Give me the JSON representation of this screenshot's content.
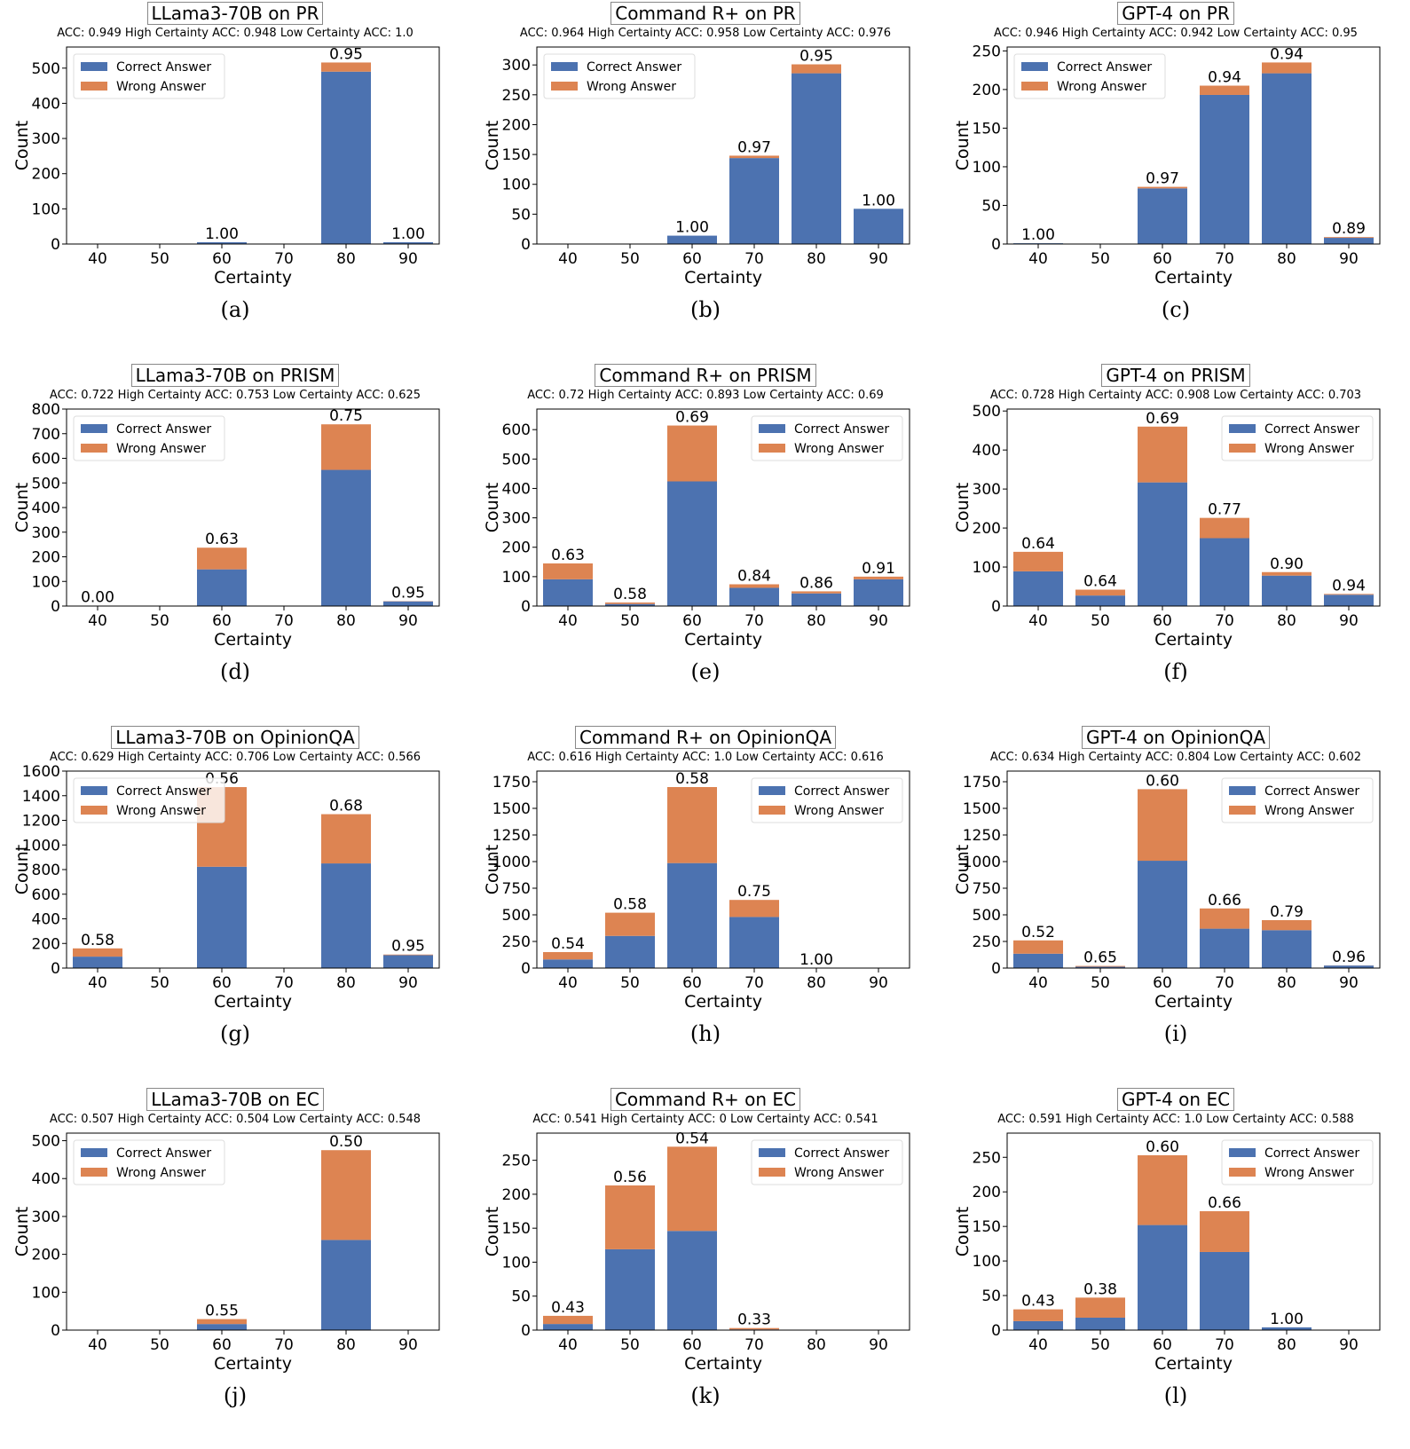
{
  "colors": {
    "correct": "#4c72b0",
    "wrong": "#dd8452"
  },
  "chart_data": [
    {
      "type": "bar",
      "stacked": true,
      "caption": "(a)",
      "title": "LLama3-70B on PR",
      "subtitle": "ACC: 0.949  High Certainty ACC: 0.948  Low Certainty ACC: 1.0",
      "xlabel": "Certainty",
      "ylabel": "Count",
      "categories": [
        "40",
        "50",
        "60",
        "70",
        "80",
        "90"
      ],
      "ylim": [
        0,
        560
      ],
      "yticks": [
        0,
        100,
        200,
        300,
        400,
        500
      ],
      "legend": "top-left",
      "series": [
        {
          "name": "Correct Answer",
          "values": [
            0,
            0,
            5,
            0,
            490,
            5
          ]
        },
        {
          "name": "Wrong Answer",
          "values": [
            0,
            0,
            0,
            0,
            26,
            0
          ]
        }
      ],
      "labels": [
        "",
        "",
        "1.00",
        "",
        "0.95",
        "1.00"
      ]
    },
    {
      "type": "bar",
      "stacked": true,
      "caption": "(b)",
      "title": "Command R+ on PR",
      "subtitle": "ACC: 0.964  High Certainty ACC: 0.958  Low Certainty ACC: 0.976",
      "xlabel": "Certainty",
      "ylabel": "Count",
      "categories": [
        "40",
        "50",
        "60",
        "70",
        "80",
        "90"
      ],
      "ylim": [
        0,
        330
      ],
      "yticks": [
        0,
        50,
        100,
        150,
        200,
        250,
        300
      ],
      "legend": "top-left",
      "series": [
        {
          "name": "Correct Answer",
          "values": [
            0,
            0,
            14,
            144,
            286,
            59
          ]
        },
        {
          "name": "Wrong Answer",
          "values": [
            0,
            0,
            0,
            4,
            15,
            0
          ]
        }
      ],
      "labels": [
        "",
        "",
        "1.00",
        "0.97",
        "0.95",
        "1.00"
      ]
    },
    {
      "type": "bar",
      "stacked": true,
      "caption": "(c)",
      "title": "GPT-4 on PR",
      "subtitle": "ACC: 0.946  High Certainty ACC: 0.942  Low Certainty ACC: 0.95",
      "xlabel": "Certainty",
      "ylabel": "Count",
      "categories": [
        "40",
        "50",
        "60",
        "70",
        "80",
        "90"
      ],
      "ylim": [
        0,
        255
      ],
      "yticks": [
        0,
        50,
        100,
        150,
        200,
        250
      ],
      "legend": "top-left",
      "series": [
        {
          "name": "Correct Answer",
          "values": [
            1,
            0,
            72,
            193,
            221,
            8
          ]
        },
        {
          "name": "Wrong Answer",
          "values": [
            0,
            0,
            2,
            12,
            14,
            1
          ]
        }
      ],
      "labels": [
        "1.00",
        "",
        "0.97",
        "0.94",
        "0.94",
        "0.89"
      ]
    },
    {
      "type": "bar",
      "stacked": true,
      "caption": "(d)",
      "title": "LLama3-70B on PRISM",
      "subtitle": "ACC: 0.722  High Certainty ACC: 0.753  Low Certainty ACC: 0.625",
      "xlabel": "Certainty",
      "ylabel": "Count",
      "categories": [
        "40",
        "50",
        "60",
        "70",
        "80",
        "90"
      ],
      "ylim": [
        0,
        800
      ],
      "yticks": [
        0,
        100,
        200,
        300,
        400,
        500,
        600,
        700,
        800
      ],
      "legend": "top-left",
      "series": [
        {
          "name": "Correct Answer",
          "values": [
            0,
            0,
            149,
            0,
            553,
            19
          ]
        },
        {
          "name": "Wrong Answer",
          "values": [
            1,
            0,
            88,
            0,
            185,
            1
          ]
        }
      ],
      "labels": [
        "0.00",
        "",
        "0.63",
        "",
        "0.75",
        "0.95"
      ]
    },
    {
      "type": "bar",
      "stacked": true,
      "caption": "(e)",
      "title": "Command R+ on PRISM",
      "subtitle": "ACC: 0.72  High Certainty ACC: 0.893  Low Certainty ACC: 0.69",
      "xlabel": "Certainty",
      "ylabel": "Count",
      "categories": [
        "40",
        "50",
        "60",
        "70",
        "80",
        "90"
      ],
      "ylim": [
        0,
        670
      ],
      "yticks": [
        0,
        100,
        200,
        300,
        400,
        500,
        600
      ],
      "legend": "top-right",
      "series": [
        {
          "name": "Correct Answer",
          "values": [
            91,
            7,
            424,
            62,
            43,
            91
          ]
        },
        {
          "name": "Wrong Answer",
          "values": [
            54,
            5,
            190,
            12,
            7,
            9
          ]
        }
      ],
      "labels": [
        "0.63",
        "0.58",
        "0.69",
        "0.84",
        "0.86",
        "0.91"
      ]
    },
    {
      "type": "bar",
      "stacked": true,
      "caption": "(f)",
      "title": "GPT-4 on PRISM",
      "subtitle": "ACC: 0.728  High Certainty ACC: 0.908  Low Certainty ACC: 0.703",
      "xlabel": "Certainty",
      "ylabel": "Count",
      "categories": [
        "40",
        "50",
        "60",
        "70",
        "80",
        "90"
      ],
      "ylim": [
        0,
        505
      ],
      "yticks": [
        0,
        100,
        200,
        300,
        400,
        500
      ],
      "legend": "top-right",
      "series": [
        {
          "name": "Correct Answer",
          "values": [
            89,
            27,
            317,
            174,
            78,
            29
          ]
        },
        {
          "name": "Wrong Answer",
          "values": [
            50,
            15,
            143,
            52,
            9,
            2
          ]
        }
      ],
      "labels": [
        "0.64",
        "0.64",
        "0.69",
        "0.77",
        "0.90",
        "0.94"
      ]
    },
    {
      "type": "bar",
      "stacked": true,
      "caption": "(g)",
      "title": "LLama3-70B on OpinionQA",
      "subtitle": "ACC: 0.629  High Certainty ACC: 0.706  Low Certainty ACC: 0.566",
      "xlabel": "Certainty",
      "ylabel": "Count",
      "categories": [
        "40",
        "50",
        "60",
        "70",
        "80",
        "90"
      ],
      "ylim": [
        0,
        1600
      ],
      "yticks": [
        0,
        200,
        400,
        600,
        800,
        1000,
        1200,
        1400,
        1600
      ],
      "legend": "top-left",
      "series": [
        {
          "name": "Correct Answer",
          "values": [
            93,
            0,
            823,
            0,
            850,
            105
          ]
        },
        {
          "name": "Wrong Answer",
          "values": [
            67,
            0,
            647,
            0,
            400,
            5
          ]
        }
      ],
      "labels": [
        "0.58",
        "",
        "0.56",
        "",
        "0.68",
        "0.95"
      ]
    },
    {
      "type": "bar",
      "stacked": true,
      "caption": "(h)",
      "title": "Command R+ on OpinionQA",
      "subtitle": "ACC: 0.616  High Certainty ACC: 1.0  Low Certainty ACC: 0.616",
      "xlabel": "Certainty",
      "ylabel": "Count",
      "categories": [
        "40",
        "50",
        "60",
        "70",
        "80",
        "90"
      ],
      "ylim": [
        0,
        1850
      ],
      "yticks": [
        0,
        250,
        500,
        750,
        1000,
        1250,
        1500,
        1750
      ],
      "legend": "top-right",
      "series": [
        {
          "name": "Correct Answer",
          "values": [
            81,
            302,
            986,
            480,
            2,
            0
          ]
        },
        {
          "name": "Wrong Answer",
          "values": [
            69,
            218,
            714,
            160,
            0,
            0
          ]
        }
      ],
      "labels": [
        "0.54",
        "0.58",
        "0.58",
        "0.75",
        "1.00",
        ""
      ]
    },
    {
      "type": "bar",
      "stacked": true,
      "caption": "(i)",
      "title": "GPT-4 on OpinionQA",
      "subtitle": "ACC: 0.634  High Certainty ACC: 0.804  Low Certainty ACC: 0.602",
      "xlabel": "Certainty",
      "ylabel": "Count",
      "categories": [
        "40",
        "50",
        "60",
        "70",
        "80",
        "90"
      ],
      "ylim": [
        0,
        1850
      ],
      "yticks": [
        0,
        250,
        500,
        750,
        1000,
        1250,
        1500,
        1750
      ],
      "legend": "top-right",
      "series": [
        {
          "name": "Correct Answer",
          "values": [
            135,
            13,
            1008,
            370,
            356,
            24
          ]
        },
        {
          "name": "Wrong Answer",
          "values": [
            125,
            7,
            672,
            190,
            94,
            1
          ]
        }
      ],
      "labels": [
        "0.52",
        "0.65",
        "0.60",
        "0.66",
        "0.79",
        "0.96"
      ]
    },
    {
      "type": "bar",
      "stacked": true,
      "caption": "(j)",
      "title": "LLama3-70B on EC",
      "subtitle": "ACC: 0.507  High Certainty ACC: 0.504  Low Certainty ACC: 0.548",
      "xlabel": "Certainty",
      "ylabel": "Count",
      "categories": [
        "40",
        "50",
        "60",
        "70",
        "80",
        "90"
      ],
      "ylim": [
        0,
        520
      ],
      "yticks": [
        0,
        100,
        200,
        300,
        400,
        500
      ],
      "legend": "top-left",
      "series": [
        {
          "name": "Correct Answer",
          "values": [
            0,
            0,
            16,
            0,
            238,
            0
          ]
        },
        {
          "name": "Wrong Answer",
          "values": [
            0,
            0,
            13,
            0,
            237,
            0
          ]
        }
      ],
      "labels": [
        "",
        "",
        "0.55",
        "",
        "0.50",
        ""
      ]
    },
    {
      "type": "bar",
      "stacked": true,
      "caption": "(k)",
      "title": "Command R+ on EC",
      "subtitle": "ACC: 0.541  High Certainty ACC: 0  Low Certainty ACC: 0.541",
      "xlabel": "Certainty",
      "ylabel": "Count",
      "categories": [
        "40",
        "50",
        "60",
        "70",
        "80",
        "90"
      ],
      "ylim": [
        0,
        290
      ],
      "yticks": [
        0,
        50,
        100,
        150,
        200,
        250
      ],
      "legend": "top-right",
      "series": [
        {
          "name": "Correct Answer",
          "values": [
            9,
            119,
            146,
            1,
            0,
            0
          ]
        },
        {
          "name": "Wrong Answer",
          "values": [
            12,
            94,
            124,
            2,
            0,
            0
          ]
        }
      ],
      "labels": [
        "0.43",
        "0.56",
        "0.54",
        "0.33",
        "",
        ""
      ]
    },
    {
      "type": "bar",
      "stacked": true,
      "caption": "(l)",
      "title": "GPT-4 on EC",
      "subtitle": "ACC: 0.591  High Certainty ACC: 1.0  Low Certainty ACC: 0.588",
      "xlabel": "Certainty",
      "ylabel": "Count",
      "categories": [
        "40",
        "50",
        "60",
        "70",
        "80",
        "90"
      ],
      "ylim": [
        0,
        285
      ],
      "yticks": [
        0,
        50,
        100,
        150,
        200,
        250
      ],
      "legend": "top-right",
      "series": [
        {
          "name": "Correct Answer",
          "values": [
            13,
            18,
            152,
            113,
            4,
            0
          ]
        },
        {
          "name": "Wrong Answer",
          "values": [
            17,
            29,
            101,
            59,
            0,
            0
          ]
        }
      ],
      "labels": [
        "0.43",
        "0.38",
        "0.60",
        "0.66",
        "1.00",
        ""
      ]
    }
  ]
}
